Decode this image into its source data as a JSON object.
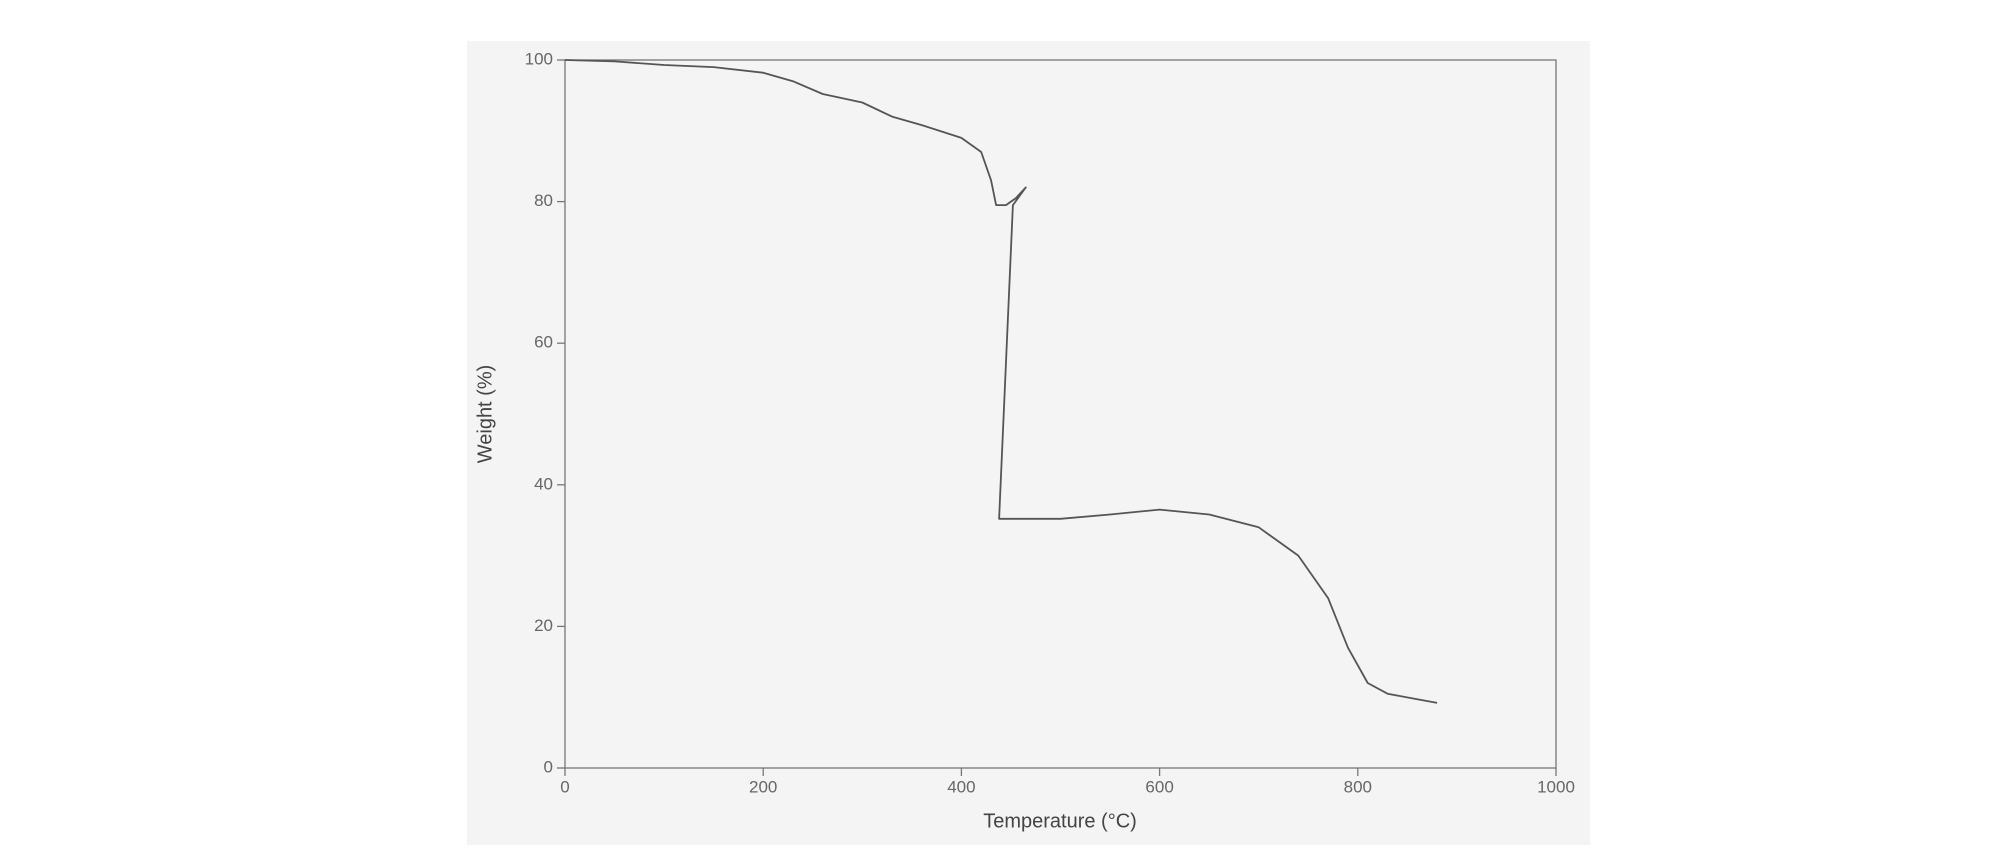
{
  "chart_data": {
    "type": "line",
    "x_label": "Temperature (°C)",
    "y_label": "Weight (%)",
    "x": [
      0,
      50,
      100,
      150,
      200,
      230,
      260,
      300,
      330,
      360,
      400,
      420,
      430,
      435,
      445,
      455,
      465,
      452,
      438,
      460,
      500,
      550,
      600,
      650,
      700,
      740,
      770,
      790,
      810,
      830,
      860,
      880
    ],
    "values": [
      100,
      99.8,
      99.3,
      99,
      98.2,
      97,
      95.2,
      94,
      92,
      90.8,
      89,
      87,
      83,
      79.5,
      79.5,
      80.5,
      82,
      79.5,
      35.2,
      35.2,
      35.2,
      35.8,
      36.5,
      35.8,
      34,
      30,
      24,
      17,
      12,
      10.5,
      9.7,
      9.2
    ],
    "color": "#555555",
    "xlim": [
      0,
      1000
    ],
    "xticks": [
      0,
      200,
      400,
      600,
      800,
      1000
    ],
    "ylim": [
      0,
      100
    ],
    "yticks": [
      0,
      20,
      40,
      60,
      80,
      100
    ]
  }
}
